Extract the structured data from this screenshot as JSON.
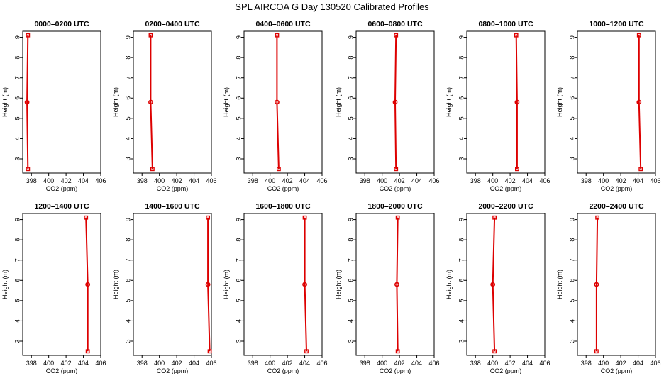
{
  "title": "SPL AIRCOA G  Day 130520  Calibrated Profiles",
  "colors": {
    "profile": "#dd0000",
    "axis": "#000000"
  },
  "chart_data": [
    {
      "type": "line",
      "title": "0000–0200 UTC",
      "xlabel": "CO2 (ppm)",
      "ylabel": "Height (m)",
      "xlim": [
        397,
        406
      ],
      "ylim": [
        2.3,
        9.3
      ],
      "xticks": [
        398,
        400,
        402,
        404,
        406
      ],
      "yticks": [
        3,
        4,
        5,
        6,
        7,
        8,
        9
      ],
      "series": [
        {
          "x": [
            397.6,
            397.5,
            397.6
          ],
          "y": [
            9.1,
            5.8,
            2.5
          ]
        }
      ]
    },
    {
      "type": "line",
      "title": "0200–0400 UTC",
      "xlabel": "CO2 (ppm)",
      "ylabel": "Height (m)",
      "xlim": [
        397,
        406
      ],
      "ylim": [
        2.3,
        9.3
      ],
      "xticks": [
        398,
        400,
        402,
        404,
        406
      ],
      "yticks": [
        3,
        4,
        5,
        6,
        7,
        8,
        9
      ],
      "series": [
        {
          "x": [
            399.0,
            399.0,
            399.2
          ],
          "y": [
            9.1,
            5.8,
            2.5
          ]
        }
      ]
    },
    {
      "type": "line",
      "title": "0400–0600 UTC",
      "xlabel": "CO2 (ppm)",
      "ylabel": "Height (m)",
      "xlim": [
        397,
        406
      ],
      "ylim": [
        2.3,
        9.3
      ],
      "xticks": [
        398,
        400,
        402,
        404,
        406
      ],
      "yticks": [
        3,
        4,
        5,
        6,
        7,
        8,
        9
      ],
      "series": [
        {
          "x": [
            400.8,
            400.8,
            401.0
          ],
          "y": [
            9.1,
            5.8,
            2.5
          ]
        }
      ]
    },
    {
      "type": "line",
      "title": "0600–0800 UTC",
      "xlabel": "CO2 (ppm)",
      "ylabel": "Height (m)",
      "xlim": [
        397,
        406
      ],
      "ylim": [
        2.3,
        9.3
      ],
      "xticks": [
        398,
        400,
        402,
        404,
        406
      ],
      "yticks": [
        3,
        4,
        5,
        6,
        7,
        8,
        9
      ],
      "series": [
        {
          "x": [
            401.6,
            401.5,
            401.6
          ],
          "y": [
            9.1,
            5.8,
            2.5
          ]
        }
      ]
    },
    {
      "type": "line",
      "title": "0800–1000 UTC",
      "xlabel": "CO2 (ppm)",
      "ylabel": "Height (m)",
      "xlim": [
        397,
        406
      ],
      "ylim": [
        2.3,
        9.3
      ],
      "xticks": [
        398,
        400,
        402,
        404,
        406
      ],
      "yticks": [
        3,
        4,
        5,
        6,
        7,
        8,
        9
      ],
      "series": [
        {
          "x": [
            402.7,
            402.8,
            402.8
          ],
          "y": [
            9.1,
            5.8,
            2.5
          ]
        }
      ]
    },
    {
      "type": "line",
      "title": "1000–1200 UTC",
      "xlabel": "CO2 (ppm)",
      "ylabel": "Height (m)",
      "xlim": [
        397,
        406
      ],
      "ylim": [
        2.3,
        9.3
      ],
      "xticks": [
        398,
        400,
        402,
        404,
        406
      ],
      "yticks": [
        3,
        4,
        5,
        6,
        7,
        8,
        9
      ],
      "series": [
        {
          "x": [
            404.1,
            404.1,
            404.3
          ],
          "y": [
            9.1,
            5.8,
            2.5
          ]
        }
      ]
    },
    {
      "type": "line",
      "title": "1200–1400 UTC",
      "xlabel": "CO2 (ppm)",
      "ylabel": "Height (m)",
      "xlim": [
        397,
        406
      ],
      "ylim": [
        2.3,
        9.3
      ],
      "xticks": [
        398,
        400,
        402,
        404,
        406
      ],
      "yticks": [
        3,
        4,
        5,
        6,
        7,
        8,
        9
      ],
      "series": [
        {
          "x": [
            404.3,
            404.5,
            404.5
          ],
          "y": [
            9.1,
            5.8,
            2.5
          ]
        }
      ]
    },
    {
      "type": "line",
      "title": "1400–1600 UTC",
      "xlabel": "CO2 (ppm)",
      "ylabel": "Height (m)",
      "xlim": [
        397,
        406
      ],
      "ylim": [
        2.3,
        9.3
      ],
      "xticks": [
        398,
        400,
        402,
        404,
        406
      ],
      "yticks": [
        3,
        4,
        5,
        6,
        7,
        8,
        9
      ],
      "series": [
        {
          "x": [
            405.6,
            405.6,
            405.8
          ],
          "y": [
            9.1,
            5.8,
            2.5
          ]
        }
      ]
    },
    {
      "type": "line",
      "title": "1600–1800 UTC",
      "xlabel": "CO2 (ppm)",
      "ylabel": "Height (m)",
      "xlim": [
        397,
        406
      ],
      "ylim": [
        2.3,
        9.3
      ],
      "xticks": [
        398,
        400,
        402,
        404,
        406
      ],
      "yticks": [
        3,
        4,
        5,
        6,
        7,
        8,
        9
      ],
      "series": [
        {
          "x": [
            404.0,
            404.0,
            404.2
          ],
          "y": [
            9.1,
            5.8,
            2.5
          ]
        }
      ]
    },
    {
      "type": "line",
      "title": "1800–2000 UTC",
      "xlabel": "CO2 (ppm)",
      "ylabel": "Height (m)",
      "xlim": [
        397,
        406
      ],
      "ylim": [
        2.3,
        9.3
      ],
      "xticks": [
        398,
        400,
        402,
        404,
        406
      ],
      "yticks": [
        3,
        4,
        5,
        6,
        7,
        8,
        9
      ],
      "series": [
        {
          "x": [
            401.8,
            401.7,
            401.8
          ],
          "y": [
            9.1,
            5.8,
            2.5
          ]
        }
      ]
    },
    {
      "type": "line",
      "title": "2000–2200 UTC",
      "xlabel": "CO2 (ppm)",
      "ylabel": "Height (m)",
      "xlim": [
        397,
        406
      ],
      "ylim": [
        2.3,
        9.3
      ],
      "xticks": [
        398,
        400,
        402,
        404,
        406
      ],
      "yticks": [
        3,
        4,
        5,
        6,
        7,
        8,
        9
      ],
      "series": [
        {
          "x": [
            400.2,
            400.0,
            400.2
          ],
          "y": [
            9.1,
            5.8,
            2.5
          ]
        }
      ]
    },
    {
      "type": "line",
      "title": "2200–2400 UTC",
      "xlabel": "CO2 (ppm)",
      "ylabel": "Height (m)",
      "xlim": [
        397,
        406
      ],
      "ylim": [
        2.3,
        9.3
      ],
      "xticks": [
        398,
        400,
        402,
        404,
        406
      ],
      "yticks": [
        3,
        4,
        5,
        6,
        7,
        8,
        9
      ],
      "series": [
        {
          "x": [
            399.3,
            399.2,
            399.2
          ],
          "y": [
            9.1,
            5.8,
            2.5
          ]
        }
      ]
    }
  ]
}
